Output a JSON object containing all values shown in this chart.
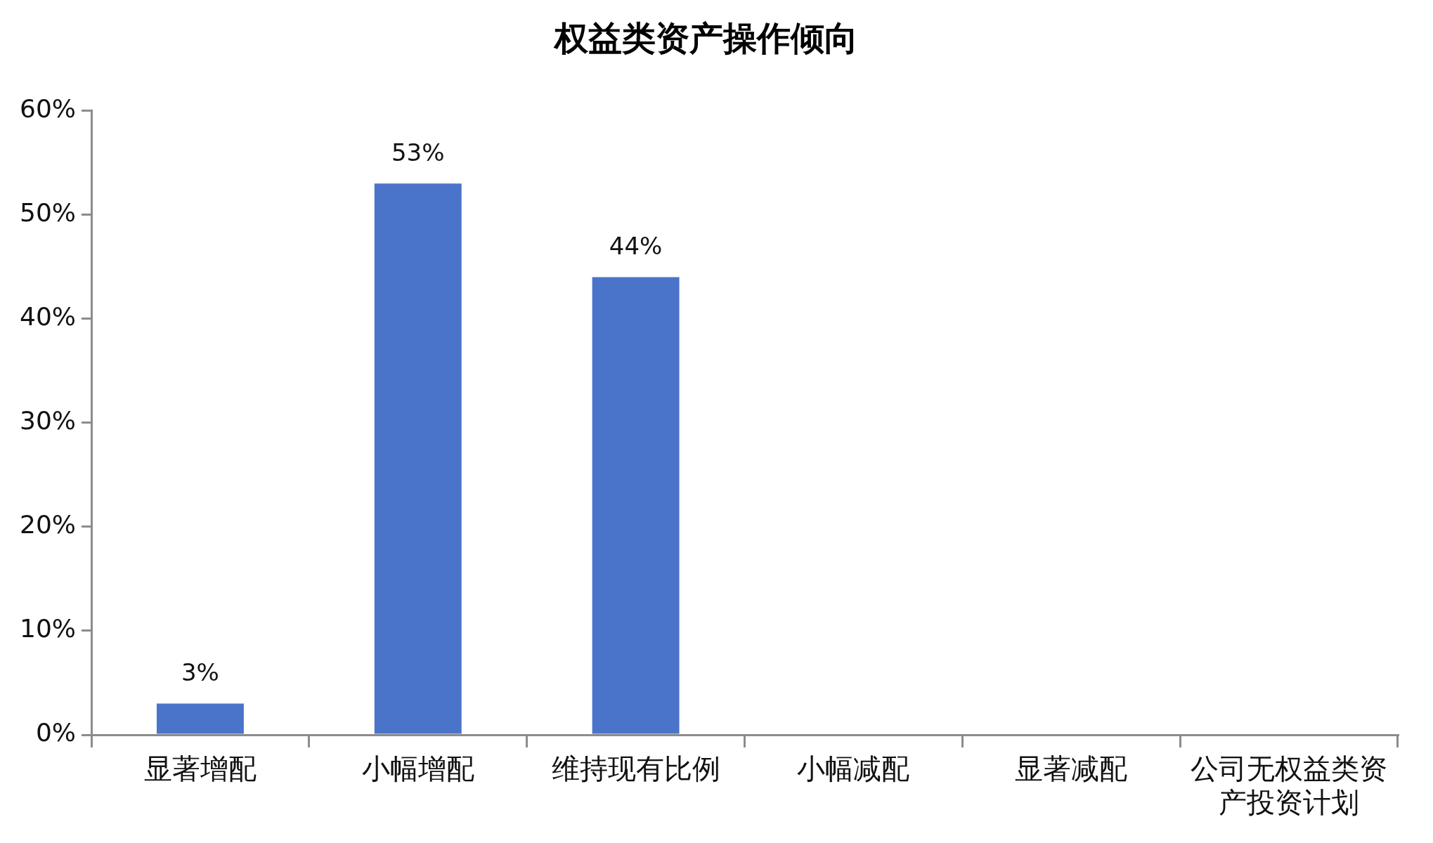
{
  "chart_data": {
    "type": "bar",
    "title": "权益类资产操作倾向",
    "categories": [
      "显著增配",
      "小幅增配",
      "维持现有比例",
      "小幅减配",
      "显著减配",
      "公司无权益类资产投资计划"
    ],
    "values": [
      3,
      53,
      44,
      null,
      null,
      null
    ],
    "value_labels": [
      "3%",
      "53%",
      "44%",
      null,
      null,
      null
    ],
    "color": "#4a74c9",
    "ylim": [
      0,
      60
    ],
    "yticks": [
      {
        "value": 0,
        "label": "0%"
      },
      {
        "value": 10,
        "label": "10%"
      },
      {
        "value": 20,
        "label": "20%"
      },
      {
        "value": 30,
        "label": "30%"
      },
      {
        "value": 40,
        "label": "40%"
      },
      {
        "value": 50,
        "label": "50%"
      },
      {
        "value": 60,
        "label": "60%"
      }
    ],
    "grid": false,
    "legend": false
  }
}
